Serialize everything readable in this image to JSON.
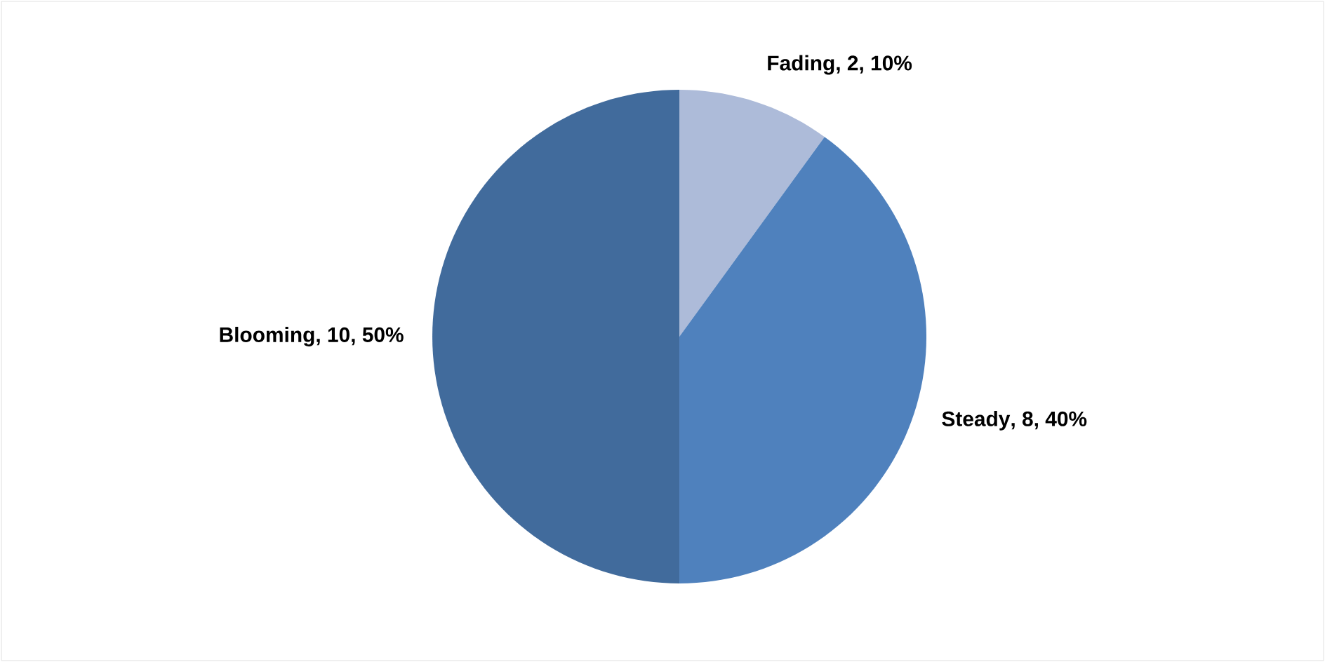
{
  "chart_data": {
    "type": "pie",
    "categories": [
      "Fading",
      "Steady",
      "Blooming"
    ],
    "values": [
      2,
      8,
      10
    ],
    "value_labels": [
      ", 2, 10%",
      ", 8, 40%",
      ", 10, 50%"
    ],
    "colors": [
      "#adbbd9",
      "#4f81bd",
      "#416b9c"
    ],
    "legend": false
  }
}
